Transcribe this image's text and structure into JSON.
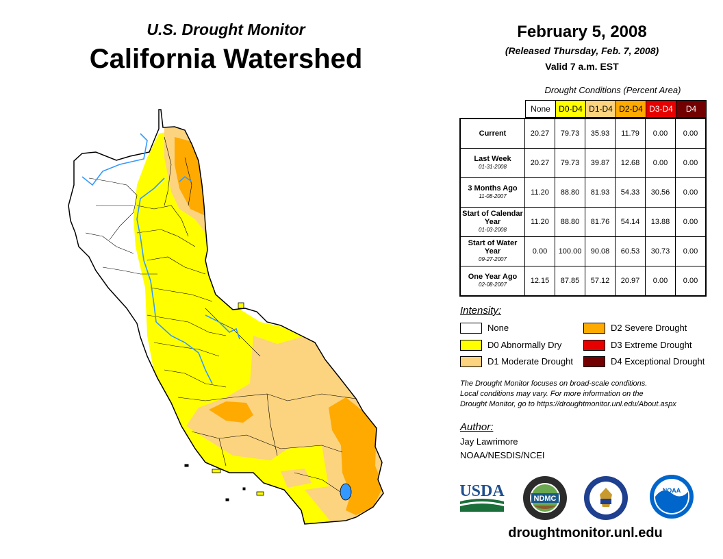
{
  "header": {
    "subtitle": "U.S. Drought Monitor",
    "title": "California Watershed",
    "date": "February 5, 2008",
    "released": "(Released Thursday, Feb. 7, 2008)",
    "valid": "Valid 7 a.m. EST"
  },
  "colors": {
    "none": "#ffffff",
    "d0": "#ffff00",
    "d1": "#fcd37f",
    "d2": "#ffaa00",
    "d3": "#e60000",
    "d4": "#730000",
    "river": "#3399ff"
  },
  "table": {
    "caption": "Drought Conditions (Percent Area)",
    "columns": [
      "None",
      "D0-D4",
      "D1-D4",
      "D2-D4",
      "D3-D4",
      "D4"
    ],
    "rows": [
      {
        "label": "Current",
        "date": "",
        "values": [
          "20.27",
          "79.73",
          "35.93",
          "11.79",
          "0.00",
          "0.00"
        ]
      },
      {
        "label": "Last Week",
        "date": "01-31-2008",
        "values": [
          "20.27",
          "79.73",
          "39.87",
          "12.68",
          "0.00",
          "0.00"
        ]
      },
      {
        "label": "3 Months Ago",
        "date": "11-08-2007",
        "values": [
          "11.20",
          "88.80",
          "81.93",
          "54.33",
          "30.56",
          "0.00"
        ]
      },
      {
        "label": "Start of Calendar Year",
        "date": "01-03-2008",
        "values": [
          "11.20",
          "88.80",
          "81.76",
          "54.14",
          "13.88",
          "0.00"
        ]
      },
      {
        "label": "Start of Water Year",
        "date": "09-27-2007",
        "values": [
          "0.00",
          "100.00",
          "90.08",
          "60.53",
          "30.73",
          "0.00"
        ]
      },
      {
        "label": "One Year Ago",
        "date": "02-08-2007",
        "values": [
          "12.15",
          "87.85",
          "57.12",
          "20.97",
          "0.00",
          "0.00"
        ]
      }
    ]
  },
  "legend": {
    "title": "Intensity:",
    "items": [
      {
        "label": "None",
        "color": "#ffffff"
      },
      {
        "label": "D0 Abnormally Dry",
        "color": "#ffff00"
      },
      {
        "label": "D1 Moderate Drought",
        "color": "#fcd37f"
      },
      {
        "label": "D2 Severe Drought",
        "color": "#ffaa00"
      },
      {
        "label": "D3 Extreme Drought",
        "color": "#e60000"
      },
      {
        "label": "D4 Exceptional Drought",
        "color": "#730000"
      }
    ]
  },
  "note": {
    "line1": "The Drought Monitor focuses on broad-scale conditions.",
    "line2": "Local conditions may vary. For more information on the",
    "line3": "Drought Monitor, go to https://droughtmonitor.unl.edu/About.aspx"
  },
  "author": {
    "label": "Author:",
    "name": "Jay Lawrimore",
    "org": "NOAA/NESDIS/NCEI"
  },
  "logos": {
    "usda": "USDA",
    "ndmc": "NDMC",
    "noaa": "NOAA",
    "ndmc_ring": "NATIONAL DROUGHT MITIGATION CENTER"
  },
  "website": "droughtmonitor.unl.edu"
}
